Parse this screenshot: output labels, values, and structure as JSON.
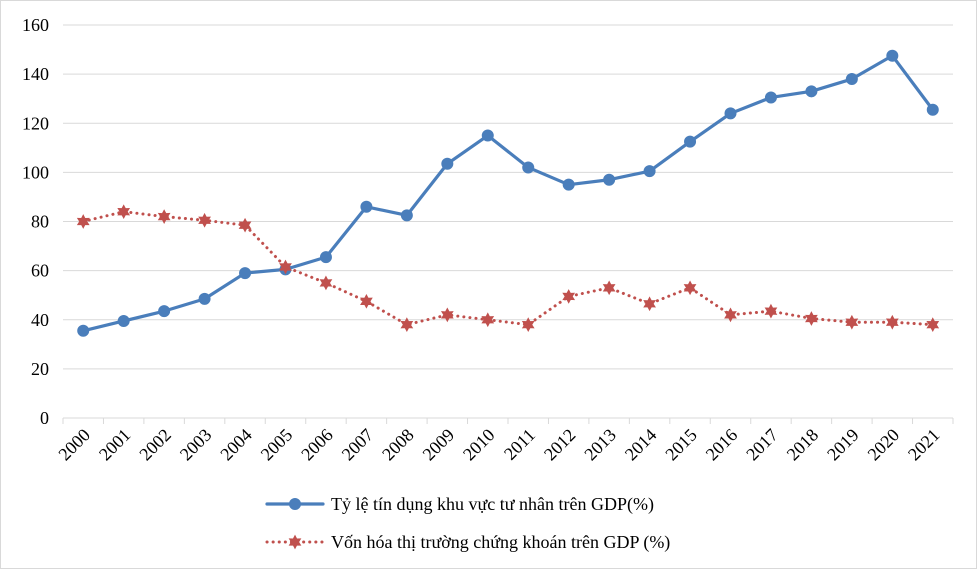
{
  "chart_data": {
    "type": "line",
    "categories": [
      "2000",
      "2001",
      "2002",
      "2003",
      "2004",
      "2005",
      "2006",
      "2007",
      "2008",
      "2009",
      "2010",
      "2011",
      "2012",
      "2013",
      "2014",
      "2015",
      "2016",
      "2017",
      "2018",
      "2019",
      "2020",
      "2021"
    ],
    "series": [
      {
        "name": "Tỷ lệ tín dụng khu vực tư nhân trên GDP(%)",
        "color": "#4a7ebb",
        "line_style": "solid",
        "marker": "circle",
        "values": [
          35.5,
          39.5,
          43.5,
          48.5,
          59,
          60.5,
          65.5,
          86,
          82.5,
          103.5,
          115,
          102,
          95,
          97,
          100.5,
          112.5,
          124,
          130.5,
          133,
          138,
          147.5,
          125.5
        ]
      },
      {
        "name": "Vốn hóa thị trường chứng khoán trên GDP (%)",
        "color": "#c0504d",
        "line_style": "dotted",
        "marker": "star",
        "values": [
          80,
          84,
          82,
          80.5,
          78.5,
          61.5,
          55,
          47.5,
          38,
          42,
          40,
          38,
          49.5,
          53,
          46.5,
          53,
          42,
          43.5,
          40.5,
          39,
          39,
          38
        ]
      }
    ],
    "ylim": [
      0,
      160
    ],
    "y_ticks": [
      "0",
      "20",
      "40",
      "60",
      "80",
      "100",
      "120",
      "140",
      "160"
    ],
    "grid": true,
    "legend_position": "bottom",
    "title": "",
    "xlabel": "",
    "ylabel": ""
  }
}
